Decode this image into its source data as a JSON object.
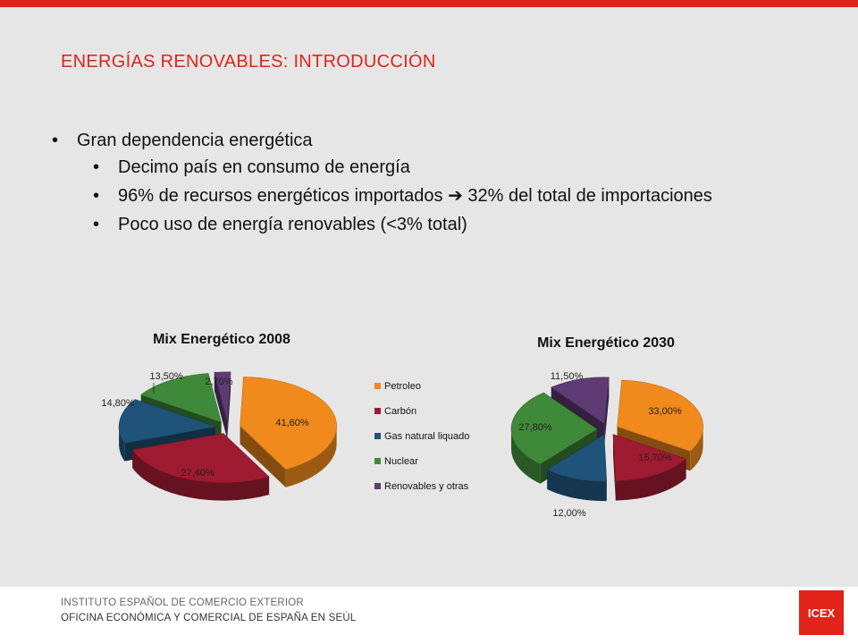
{
  "header": {
    "title": "ENERGÍAS RENOVABLES: INTRODUCCIÓN"
  },
  "bullets": [
    {
      "level": 1,
      "text": "Gran dependencia energética"
    },
    {
      "level": 2,
      "text": "Decimo país en consumo de energía"
    },
    {
      "level": 2,
      "text": "96% de recursos energéticos importados ➔ 32% del total de importaciones"
    },
    {
      "level": 2,
      "text": "Poco uso de energía renovables (<3% total)"
    }
  ],
  "chart_data": [
    {
      "type": "pie",
      "title": "Mix Energético 2008",
      "categories": [
        "Petroleo",
        "Carbón",
        "Gas natural liquado",
        "Nuclear",
        "Renovables y otras"
      ],
      "values": [
        41.6,
        27.4,
        14.8,
        13.5,
        2.7
      ],
      "labels": [
        "41,60%",
        "27,40%",
        "14,80%",
        "13,50%",
        "2,70%"
      ],
      "colors": [
        "#f08a1c",
        "#9e1b32",
        "#1f5379",
        "#3f8a39",
        "#5e3b73"
      ],
      "exploded": true,
      "legend": "right"
    },
    {
      "type": "pie",
      "title": "Mix Energético 2030",
      "categories": [
        "Petroleo",
        "Carbón",
        "Gas natural liquado",
        "Nuclear",
        "Renovables y otras"
      ],
      "values": [
        33.0,
        15.7,
        12.0,
        27.8,
        11.5
      ],
      "labels": [
        "33,00%",
        "15,70%",
        "12,00%",
        "27,80%",
        "11,50%"
      ],
      "colors": [
        "#f08a1c",
        "#9e1b32",
        "#1f5379",
        "#3f8a39",
        "#5e3b73"
      ],
      "exploded": true
    }
  ],
  "legend": {
    "items": [
      {
        "label": "Petroleo",
        "color": "#f08a1c"
      },
      {
        "label": "Carbón",
        "color": "#9e1b32"
      },
      {
        "label": "Gas natural liquado",
        "color": "#1f5379"
      },
      {
        "label": "Nuclear",
        "color": "#3f8a39"
      },
      {
        "label": "Renovables y otras",
        "color": "#5e3b73"
      }
    ]
  },
  "footer": {
    "line1": "INSTITUTO  ESPAÑOL DE COMERCIO  EXTERIOR",
    "line2": "OFICINA  ECONÓMICA  Y COMERCIAL  DE ESPAÑA EN SEÚL",
    "logo_text": "ICEX"
  },
  "colors": {
    "accent": "#e2231a",
    "background": "#e6e6e6"
  }
}
